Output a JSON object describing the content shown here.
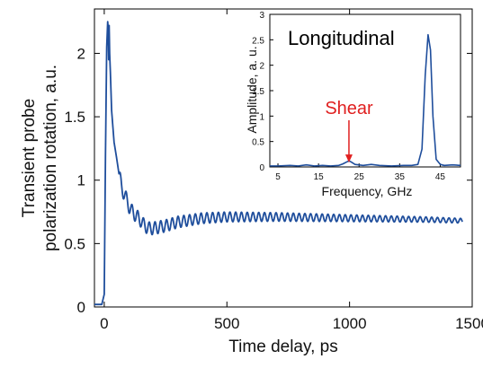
{
  "chart_data": [
    {
      "type": "line",
      "title": "",
      "xlabel": "Time delay, ps",
      "ylabel_lines": [
        "Transient probe",
        "polarization rotation, a.u."
      ],
      "xlim": [
        -40,
        1500
      ],
      "ylim": [
        0,
        2.35
      ],
      "xticks": [
        0,
        500,
        1000,
        1500
      ],
      "xtick_labels": [
        "0",
        "500",
        "1000",
        "1500"
      ],
      "yticks": [
        0,
        0.5,
        1,
        1.5,
        2
      ],
      "ytick_labels": [
        "0",
        "0.5",
        "1",
        "1.5",
        "2"
      ],
      "grid": false,
      "line_color": "#1f4e9c",
      "series": [
        {
          "x": [
            -40,
            -10,
            0,
            5,
            10,
            14,
            16,
            18,
            20,
            22,
            25,
            30,
            40,
            50,
            60,
            70,
            80,
            90,
            100,
            110,
            120,
            130,
            140,
            150,
            160,
            180,
            200,
            250,
            300,
            400,
            500,
            700,
            1000,
            1300,
            1460
          ],
          "y": [
            0.02,
            0.02,
            0.1,
            1.2,
            2.05,
            2.25,
            2.2,
            1.95,
            2.22,
            2.0,
            1.85,
            1.55,
            1.3,
            1.18,
            1.05,
            0.95,
            0.9,
            0.85,
            0.8,
            0.76,
            0.74,
            0.72,
            0.7,
            0.68,
            0.65,
            0.62,
            0.62,
            0.64,
            0.67,
            0.7,
            0.71,
            0.71,
            0.7,
            0.69,
            0.68
          ],
          "oscillation": {
            "amplitude_start": 0.06,
            "amplitude_end": 0.018,
            "period_ps": 23.5,
            "from_x": 60
          }
        }
      ]
    },
    {
      "type": "line",
      "title": "Longitudinal",
      "xlabel": "Frequency, GHz",
      "ylabel": "Amplitude, a. u.",
      "xlim": [
        3,
        50
      ],
      "ylim": [
        0,
        3
      ],
      "xticks": [
        5,
        15,
        25,
        35,
        45
      ],
      "xtick_labels": [
        "5",
        "15",
        "25",
        "35",
        "45"
      ],
      "yticks": [
        0,
        0.5,
        1,
        1.5,
        2,
        2.5,
        3
      ],
      "ytick_labels": [
        "0",
        "0.5",
        "1",
        "1.5",
        "2",
        "2.5",
        "3"
      ],
      "grid": false,
      "line_color": "#1f4e9c",
      "annotation": {
        "text": "Shear",
        "color": "#e02020",
        "points_to_x": 22.5,
        "points_to_y": 0.05
      },
      "series": [
        {
          "x": [
            3,
            5,
            8,
            10,
            12,
            14,
            16,
            18,
            20,
            21,
            22,
            22.5,
            23,
            24,
            26,
            28,
            30,
            33,
            36,
            38,
            39.5,
            40.5,
            41.3,
            42,
            42.6,
            43.2,
            44,
            45,
            46,
            48,
            50
          ],
          "y": [
            0.02,
            0.02,
            0.03,
            0.02,
            0.04,
            0.02,
            0.03,
            0.02,
            0.03,
            0.06,
            0.1,
            0.12,
            0.1,
            0.05,
            0.03,
            0.05,
            0.03,
            0.02,
            0.03,
            0.03,
            0.05,
            0.35,
            1.8,
            2.6,
            2.3,
            1.0,
            0.15,
            0.05,
            0.03,
            0.04,
            0.03
          ]
        }
      ]
    }
  ]
}
